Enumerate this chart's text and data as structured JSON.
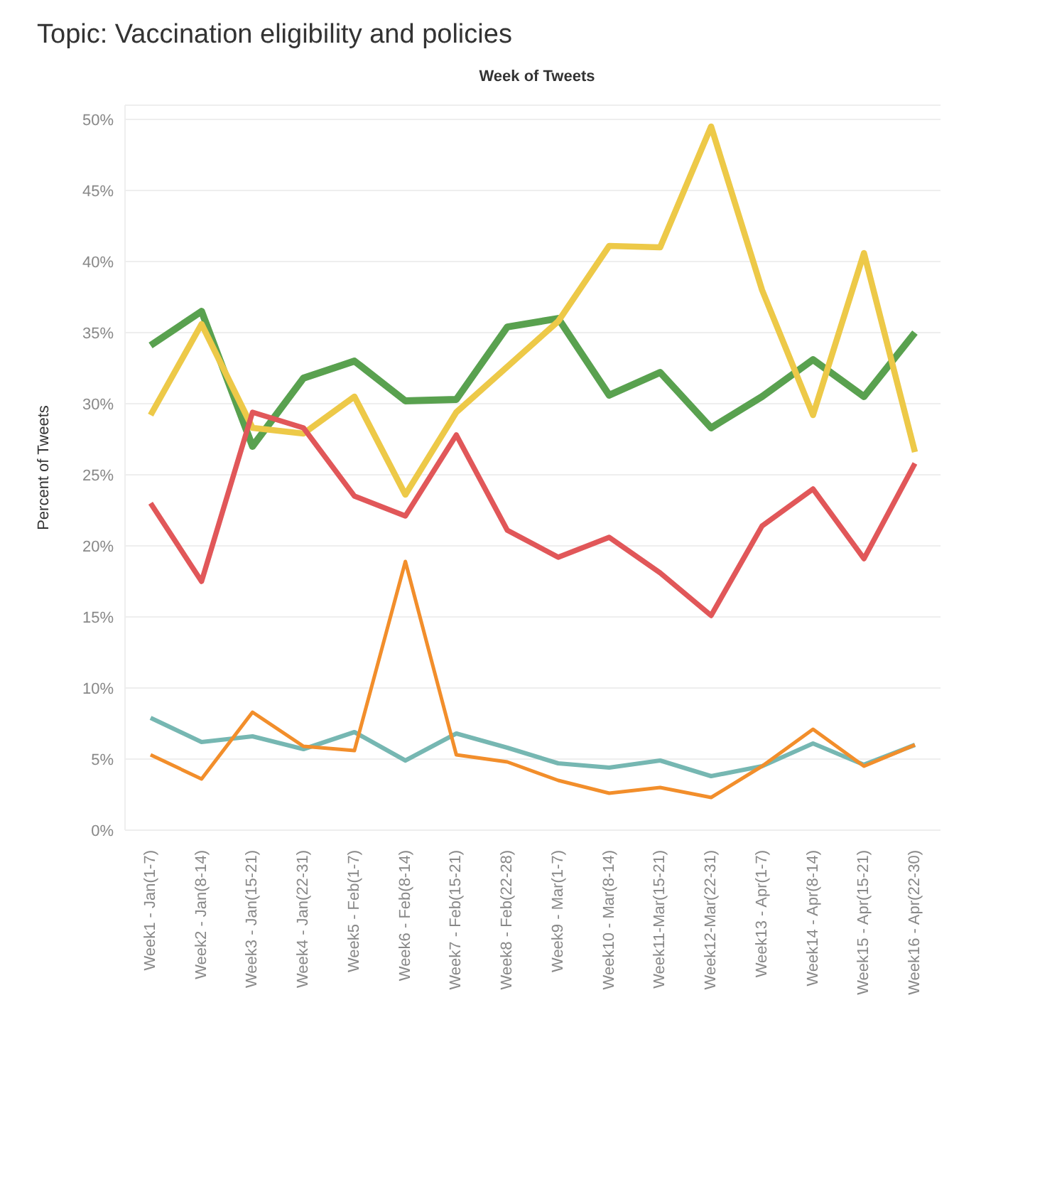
{
  "chart_data": {
    "type": "line",
    "title": "Topic: Vaccination eligibility and policies",
    "xlabel": "Week of Tweets",
    "ylabel": "Percent of Tweets",
    "categories": [
      "Week1 - Jan(1-7)",
      "Week2 - Jan(8-14)",
      "Week3 - Jan(15-21)",
      "Week4 - Jan(22-31)",
      "Week5 - Feb(1-7)",
      "Week6 - Feb(8-14)",
      "Week7 - Feb(15-21)",
      "Week8 - Feb(22-28)",
      "Week9 - Mar(1-7)",
      "Week10 - Mar(8-14)",
      "Week11-Mar(15-21)",
      "Week12-Mar(22-31)",
      "Week13 - Apr(1-7)",
      "Week14 - Apr(8-14)",
      "Week15 - Apr(15-21)",
      "Week16 - Apr(22-30)"
    ],
    "series": [
      {
        "color": "#59a14f",
        "values": [
          34.1,
          36.5,
          27.0,
          31.8,
          33.0,
          30.2,
          30.3,
          35.4,
          36.0,
          30.6,
          32.2,
          28.3,
          30.5,
          33.1,
          30.5,
          35.0
        ]
      },
      {
        "color": "#edc948",
        "values": [
          29.2,
          35.6,
          28.3,
          27.9,
          30.5,
          23.6,
          29.4,
          32.6,
          35.8,
          41.1,
          41.0,
          49.5,
          38.0,
          29.2,
          40.6,
          26.6
        ]
      },
      {
        "color": "#e15759",
        "values": [
          23.0,
          17.5,
          29.4,
          28.3,
          23.5,
          22.1,
          27.8,
          21.1,
          19.2,
          20.6,
          18.1,
          15.1,
          21.4,
          24.0,
          19.1,
          25.8
        ]
      },
      {
        "color": "#76b7b2",
        "values": [
          7.9,
          6.2,
          6.6,
          5.7,
          6.9,
          4.9,
          6.8,
          5.8,
          4.7,
          4.4,
          4.9,
          3.8,
          4.5,
          6.1,
          4.6,
          6.0
        ]
      },
      {
        "color": "#f28e2b",
        "values": [
          5.3,
          3.6,
          8.3,
          5.9,
          5.6,
          18.9,
          5.3,
          4.8,
          3.5,
          2.6,
          3.0,
          2.3,
          4.5,
          7.1,
          4.5,
          6.0
        ]
      }
    ],
    "ylim": [
      0,
      51
    ],
    "yticks": [
      {
        "value": 0,
        "label": "0%"
      },
      {
        "value": 5,
        "label": "5%"
      },
      {
        "value": 10,
        "label": "10%"
      },
      {
        "value": 15,
        "label": "15%"
      },
      {
        "value": 20,
        "label": "20%"
      },
      {
        "value": 25,
        "label": "25%"
      },
      {
        "value": 30,
        "label": "30%"
      },
      {
        "value": 35,
        "label": "35%"
      },
      {
        "value": 40,
        "label": "40%"
      },
      {
        "value": 45,
        "label": "45%"
      },
      {
        "value": 50,
        "label": "50%"
      }
    ],
    "grid": "y",
    "legend": false,
    "marker": "none",
    "line_style": "solid"
  }
}
